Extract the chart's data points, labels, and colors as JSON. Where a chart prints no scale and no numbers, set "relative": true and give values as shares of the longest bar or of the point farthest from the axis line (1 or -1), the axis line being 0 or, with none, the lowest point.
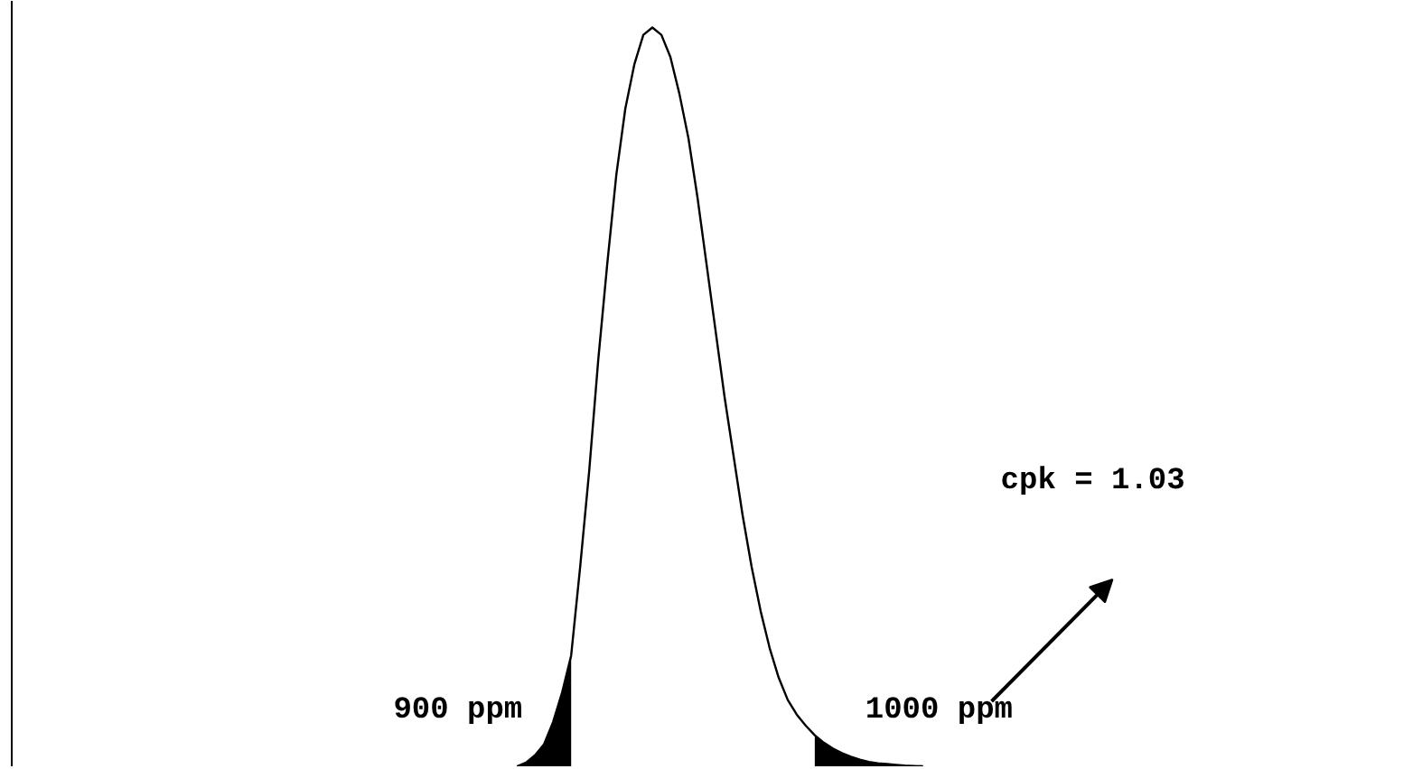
{
  "chart_data": {
    "type": "line",
    "relative": true,
    "categories": [
      null,
      null,
      null,
      null,
      null,
      null,
      null,
      null,
      null,
      null,
      null,
      null,
      null,
      null,
      null,
      null,
      null,
      null,
      null,
      null,
      null,
      null,
      null,
      null,
      null,
      null,
      null,
      null,
      null,
      null,
      null,
      null,
      null,
      null,
      null,
      null,
      null,
      null,
      null,
      null,
      null,
      null,
      null,
      null,
      null,
      null
    ],
    "series": [
      {
        "color": "#000000",
        "values": [
          0,
          0.005,
          0.015,
          0.03,
          0.06,
          0.1,
          0.15,
          0.27,
          0.4,
          0.55,
          0.68,
          0.8,
          0.89,
          0.95,
          0.99,
          1.0,
          0.99,
          0.96,
          0.91,
          0.85,
          0.77,
          0.68,
          0.59,
          0.5,
          0.42,
          0.34,
          0.27,
          0.21,
          0.16,
          0.12,
          0.09,
          0.07,
          0.055,
          0.042,
          0.032,
          0.024,
          0.018,
          0.013,
          0.009,
          0.006,
          0.004,
          0.003,
          0.002,
          0.001,
          0.0005,
          0
        ]
      },
      {
        "type": "area",
        "color": "#000000",
        "values": [
          0,
          0.005,
          0.015,
          0.03,
          0.06,
          0.1,
          0.15,
          null,
          null,
          null,
          null,
          null,
          null,
          null,
          null,
          null,
          null,
          null,
          null,
          null,
          null,
          null,
          null,
          null,
          null,
          null,
          null,
          null,
          null,
          null,
          null,
          null,
          null,
          0.042,
          0.032,
          0.024,
          0.018,
          0.013,
          0.009,
          0.006,
          0.004,
          0.003,
          0.002,
          0.001,
          0.0005,
          0
        ]
      }
    ],
    "annotations": [
      "900 ppm",
      "1000 ppm",
      "cpk = 1.03"
    ]
  }
}
